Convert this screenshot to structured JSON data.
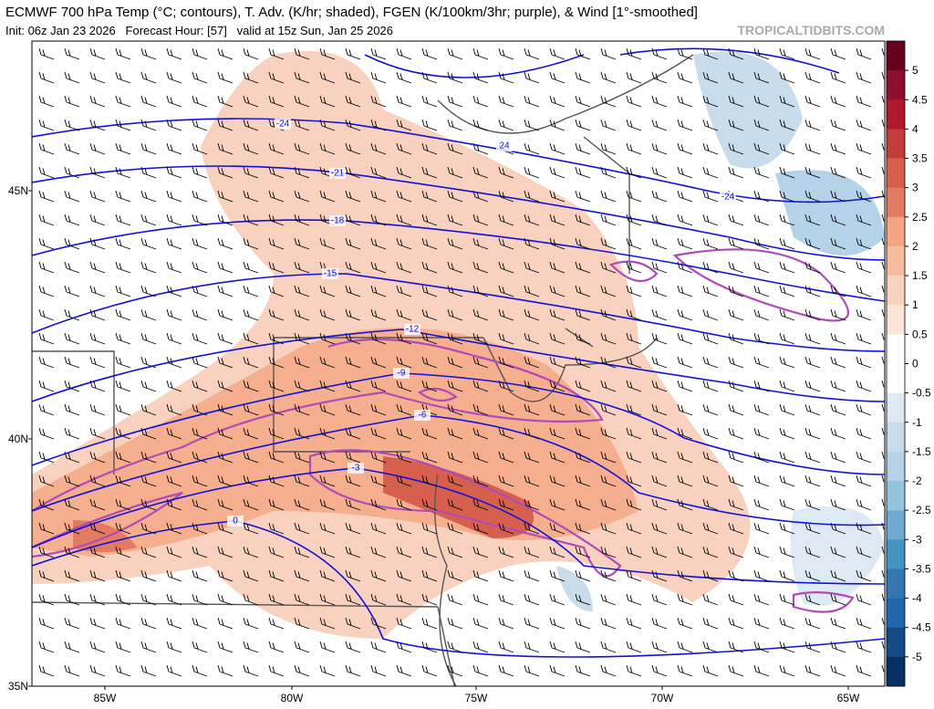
{
  "header": {
    "title": "ECMWF 700 hPa Temp (°C; contours), T. Adv. (K/hr; shaded), FGEN (K/100km/3hr; purple), & Wind [1°-smoothed]",
    "subtitle": "Init: 06z Jan 23 2026   Forecast Hour: [57]   valid at 15z Sun, Jan 25 2026",
    "watermark": "TROPICALTIDBITS.COM"
  },
  "map": {
    "latitude_labels": [
      "45N",
      "40N",
      "35N"
    ],
    "longitude_labels": [
      "85W",
      "80W",
      "75W",
      "70W",
      "65W"
    ],
    "contour_labels": [
      "-24",
      "24",
      "-24",
      "-21",
      "-18",
      "-15",
      "-12",
      "-9",
      "-6",
      "-3",
      "0"
    ]
  },
  "colorbar": {
    "ticks": [
      5,
      4.5,
      4,
      3.5,
      3,
      2.5,
      2,
      1.5,
      1,
      0.5,
      0,
      -0.5,
      -1,
      -1.5,
      -2,
      -2.5,
      -3,
      -3.5,
      -4,
      -4.5,
      -5
    ],
    "colors": [
      "#67001f",
      "#8e0e2b",
      "#b2182b",
      "#c33c3c",
      "#d6604d",
      "#e27b62",
      "#f4a582",
      "#f6bca0",
      "#f9d2bf",
      "#fbe3d6",
      "#ffffff",
      "#ffffff",
      "#dde9f3",
      "#c9dcec",
      "#b4d2e8",
      "#92c5de",
      "#6fabd0",
      "#4393c3",
      "#3276b3",
      "#2166ac",
      "#144b86",
      "#053061"
    ]
  }
}
